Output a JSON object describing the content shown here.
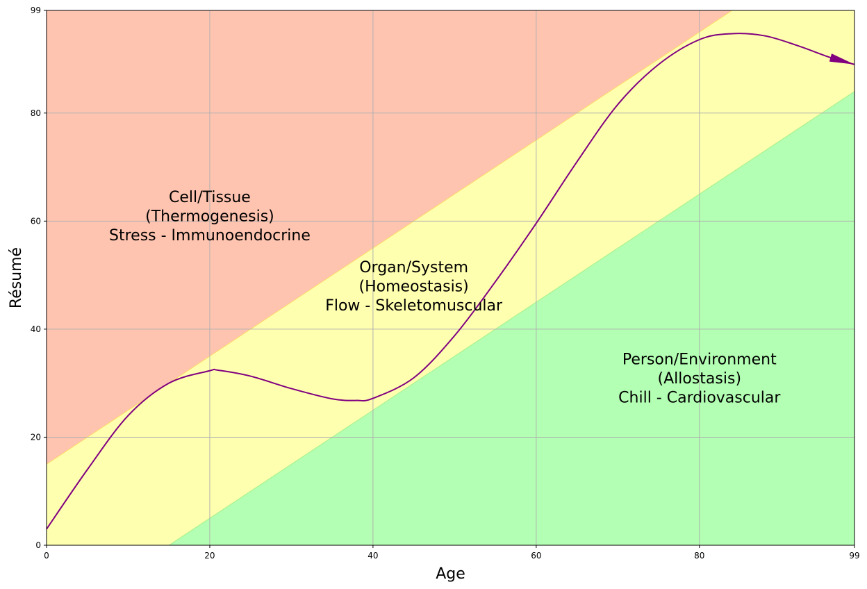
{
  "chart_data": {
    "type": "area",
    "title": "",
    "xlabel": "Age",
    "ylabel": "Résumé",
    "xlim": [
      0,
      99
    ],
    "ylim": [
      0,
      99
    ],
    "xticks": [
      0,
      20,
      40,
      60,
      80,
      99
    ],
    "yticks": [
      0,
      20,
      40,
      60,
      80,
      99
    ],
    "grid": true,
    "colors": {
      "red_zone": "#ffc4b0",
      "yellow_zone": "#ffffb0",
      "green_zone": "#b3ffb3",
      "red_edge": "#ffd966",
      "green_edge": "#a8f08a",
      "curve": "#800080",
      "grid": "#b0b0b0"
    },
    "regions": [
      {
        "name": "red",
        "description_lines": [
          "Cell/Tissue",
          "(Thermogenesis)",
          "Stress - Immunoendocrine"
        ],
        "label_at": [
          20,
          61
        ],
        "lower_boundary": {
          "x": [
            0,
            99
          ],
          "y": [
            15,
            114
          ]
        }
      },
      {
        "name": "yellow",
        "description_lines": [
          "Organ/System",
          "(Homeostasis)",
          "Flow - Skeletomuscular"
        ],
        "label_at": [
          45,
          48
        ]
      },
      {
        "name": "green",
        "description_lines": [
          "Person/Environment",
          "(Allostasis)",
          "Chill - Cardiovascular"
        ],
        "label_at": [
          80,
          31
        ],
        "upper_boundary": {
          "x": [
            15,
            99
          ],
          "y": [
            0,
            84
          ]
        }
      }
    ],
    "series": [
      {
        "x": [
          0,
          5,
          10,
          15,
          20,
          21,
          25,
          30,
          35,
          38,
          40,
          45,
          50,
          55,
          60,
          65,
          70,
          75,
          80,
          84,
          88,
          92,
          96,
          99
        ],
        "y": [
          3,
          14,
          24,
          30,
          32.3,
          32.4,
          31.3,
          29,
          27.1,
          26.8,
          27.2,
          31,
          38.8,
          48.8,
          59.6,
          71,
          81.6,
          89,
          93.6,
          94.7,
          94.3,
          92.5,
          90.3,
          89
        ]
      }
    ]
  }
}
